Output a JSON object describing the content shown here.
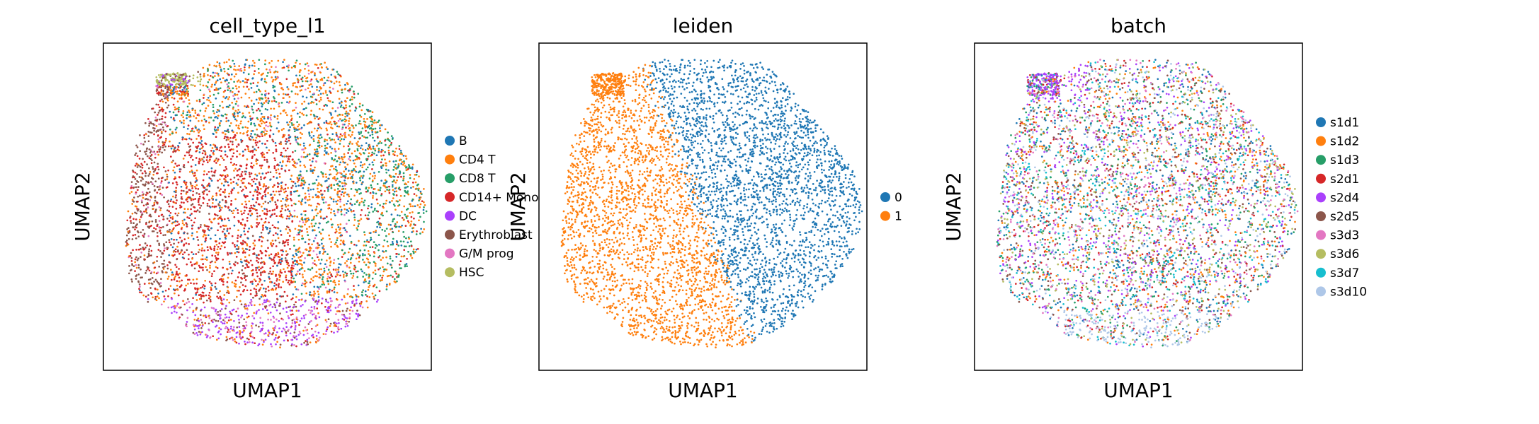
{
  "chart_data": [
    {
      "type": "scatter",
      "title": "cell_type_l1",
      "xlabel": "UMAP1",
      "ylabel": "UMAP2",
      "xticks": false,
      "yticks": false,
      "legend_placement": "right-margin",
      "legend": [
        {
          "label": "B",
          "color": "#1f77b4"
        },
        {
          "label": "CD4 T",
          "color": "#ff7f0e"
        },
        {
          "label": "CD8 T",
          "color": "#279e68"
        },
        {
          "label": "CD14+ Mono",
          "color": "#d62728"
        },
        {
          "label": "DC",
          "color": "#aa40fc"
        },
        {
          "label": "Erythroblast",
          "color": "#8c564b"
        },
        {
          "label": "G/M prog",
          "color": "#e377c2"
        },
        {
          "label": "HSC",
          "color": "#b5bd61"
        }
      ]
    },
    {
      "type": "scatter",
      "title": "leiden",
      "xlabel": "UMAP1",
      "ylabel": "UMAP2",
      "xticks": false,
      "yticks": false,
      "legend_placement": "right-margin",
      "legend": [
        {
          "label": "0",
          "color": "#1f77b4"
        },
        {
          "label": "1",
          "color": "#ff7f0e"
        }
      ]
    },
    {
      "type": "scatter",
      "title": "batch",
      "xlabel": "UMAP1",
      "ylabel": "UMAP2",
      "xticks": false,
      "yticks": false,
      "legend_placement": "right-margin",
      "legend": [
        {
          "label": "s1d1",
          "color": "#1f77b4"
        },
        {
          "label": "s1d2",
          "color": "#ff7f0e"
        },
        {
          "label": "s1d3",
          "color": "#279e68"
        },
        {
          "label": "s2d1",
          "color": "#d62728"
        },
        {
          "label": "s2d4",
          "color": "#aa40fc"
        },
        {
          "label": "s2d5",
          "color": "#8c564b"
        },
        {
          "label": "s3d3",
          "color": "#e377c2"
        },
        {
          "label": "s3d6",
          "color": "#b5bd61"
        },
        {
          "label": "s3d7",
          "color": "#17becf"
        },
        {
          "label": "s3d10",
          "color": "#aec7e8"
        }
      ]
    }
  ]
}
